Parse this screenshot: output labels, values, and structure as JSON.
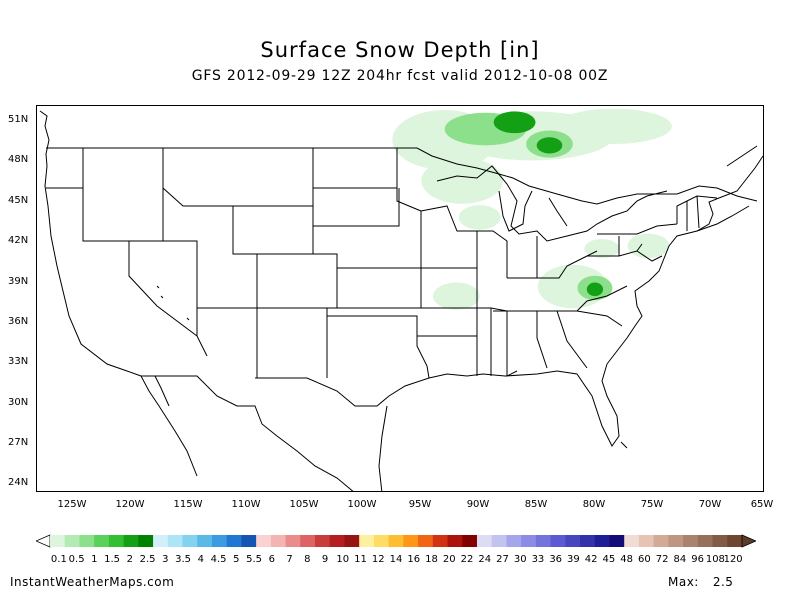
{
  "title": "Surface Snow Depth [in]",
  "subtitle": "GFS 2012-09-29 12Z 204hr fcst valid 2012-10-08 00Z",
  "lat_labels": [
    "51N",
    "48N",
    "45N",
    "42N",
    "39N",
    "36N",
    "33N",
    "30N",
    "27N",
    "24N"
  ],
  "lon_labels": [
    "125W",
    "120W",
    "115W",
    "110W",
    "105W",
    "100W",
    "95W",
    "90W",
    "85W",
    "80W",
    "75W",
    "70W",
    "65W"
  ],
  "colorbar": {
    "labels": [
      "0.1",
      "0.5",
      "1",
      "1.5",
      "2",
      "2.5",
      "3",
      "3.5",
      "4",
      "4.5",
      "5",
      "5.5",
      "6",
      "7",
      "8",
      "9",
      "10",
      "11",
      "12",
      "14",
      "16",
      "18",
      "20",
      "22",
      "24",
      "27",
      "30",
      "33",
      "36",
      "39",
      "42",
      "45",
      "48",
      "60",
      "72",
      "84",
      "96",
      "108",
      "120"
    ],
    "colors": [
      "#dcf5dc",
      "#b4ebb4",
      "#8ce08c",
      "#5ad25a",
      "#32c032",
      "#14a014",
      "#008200",
      "#d2f0fa",
      "#aae6f5",
      "#82d2f0",
      "#5ab9e6",
      "#3c9be1",
      "#2078d2",
      "#1455b4",
      "#fad2d2",
      "#f5b4b4",
      "#eb8c8c",
      "#dc6464",
      "#c83c3c",
      "#b41e1e",
      "#961414",
      "#fff0a0",
      "#ffdc64",
      "#ffbe32",
      "#ff9614",
      "#f06414",
      "#d23214",
      "#aa140a",
      "#820000",
      "#dcdcf5",
      "#c3c3f0",
      "#a5a5eb",
      "#8c8ce6",
      "#7373dc",
      "#5a5ad2",
      "#4646be",
      "#3232aa",
      "#1e1e96",
      "#140a78",
      "#f0dcd2",
      "#e6c3b4",
      "#d2aa96",
      "#be9682",
      "#aa826e",
      "#96705a",
      "#825a46",
      "#6e4632"
    ]
  },
  "footer": {
    "site": "InstantWeatherMaps.com",
    "max_label": "Max:",
    "max_value": "2.5"
  },
  "map": {
    "extent": {
      "lon_min": -127.5,
      "lon_max": -65,
      "lat_min": 23.5,
      "lat_max": 52
    },
    "snow_areas": [
      {
        "level": 1,
        "lon": -92.5,
        "lat": 49.5,
        "rx": 4.5,
        "ry": 2.2
      },
      {
        "level": 1,
        "lon": -85,
        "lat": 49.8,
        "rx": 7,
        "ry": 1.8
      },
      {
        "level": 1,
        "lon": -78,
        "lat": 50.5,
        "rx": 5,
        "ry": 1.3
      },
      {
        "level": 2,
        "lon": -89,
        "lat": 50.3,
        "rx": 3.5,
        "ry": 1.2
      },
      {
        "level": 3,
        "lon": -86.5,
        "lat": 50.8,
        "rx": 1.8,
        "ry": 0.8
      },
      {
        "level": 2,
        "lon": -83.5,
        "lat": 49.2,
        "rx": 2,
        "ry": 1.0
      },
      {
        "level": 3,
        "lon": -83.5,
        "lat": 49.1,
        "rx": 1.1,
        "ry": 0.6
      },
      {
        "level": 1,
        "lon": -91,
        "lat": 46.5,
        "rx": 3.5,
        "ry": 1.7
      },
      {
        "level": 1,
        "lon": -89.5,
        "lat": 43.8,
        "rx": 1.8,
        "ry": 0.9
      },
      {
        "level": 1,
        "lon": -91.5,
        "lat": 38.0,
        "rx": 2,
        "ry": 1.0
      },
      {
        "level": 1,
        "lon": -81.5,
        "lat": 38.7,
        "rx": 3,
        "ry": 1.6
      },
      {
        "level": 2,
        "lon": -79.6,
        "lat": 38.6,
        "rx": 1.5,
        "ry": 0.9
      },
      {
        "level": 3,
        "lon": -79.6,
        "lat": 38.5,
        "rx": 0.7,
        "ry": 0.5
      },
      {
        "level": 1,
        "lon": -75,
        "lat": 41.7,
        "rx": 1.8,
        "ry": 0.9
      },
      {
        "level": 1,
        "lon": -79,
        "lat": 41.5,
        "rx": 1.5,
        "ry": 0.7
      }
    ]
  }
}
